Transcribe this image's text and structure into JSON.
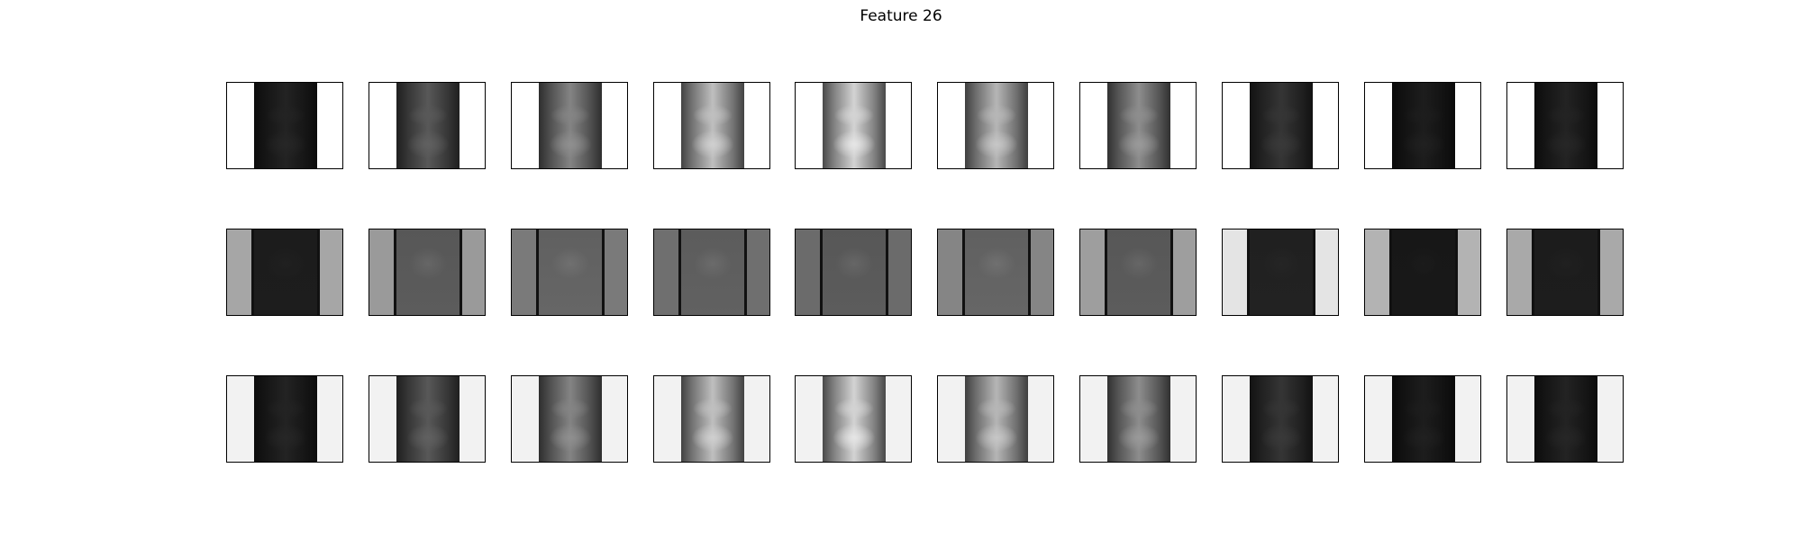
{
  "title": "Feature 26",
  "rows": [
    {
      "name": "top",
      "background": "#ffffff",
      "edge_contrast": 0,
      "panels": [
        0.12,
        0.3,
        0.45,
        0.65,
        0.72,
        0.62,
        0.48,
        0.18,
        0.1,
        0.12
      ]
    },
    {
      "name": "middle",
      "background": "#a9a9a9",
      "edge_contrast": 1,
      "panels": [
        0.12,
        0.38,
        0.42,
        0.4,
        0.38,
        0.42,
        0.38,
        0.14,
        0.1,
        0.12
      ],
      "backgrounds": [
        "#a6a6a6",
        "#9a9a9a",
        "#7a7a7a",
        "#6f6f6f",
        "#6b6b6b",
        "#858585",
        "#9e9e9e",
        "#e4e4e4",
        "#b3b3b3",
        "#a9a9a9"
      ]
    },
    {
      "name": "bottom",
      "background": "#f2f2f2",
      "edge_contrast": 0,
      "panels": [
        0.12,
        0.3,
        0.45,
        0.65,
        0.72,
        0.62,
        0.48,
        0.18,
        0.1,
        0.12
      ]
    }
  ]
}
